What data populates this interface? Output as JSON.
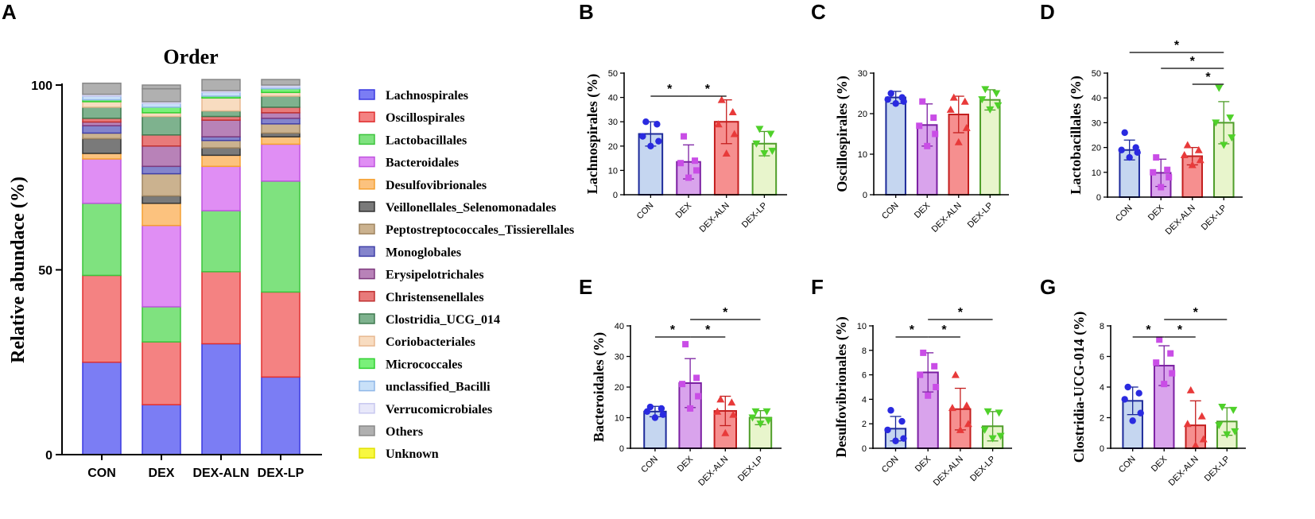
{
  "colors": {
    "CON_fill": "#c5d6f0",
    "CON_edge": "#1d2a9a",
    "CON_dot": "#2a2ae0",
    "DEX_fill": "#d9a3ec",
    "DEX_edge": "#7b1fa2",
    "DEX_dot": "#c94de6",
    "ALN_fill": "#f68f8f",
    "ALN_edge": "#c41e1e",
    "ALN_dot": "#e83a3a",
    "LP_fill": "#e8f5cc",
    "LP_edge": "#4f9e2a",
    "LP_dot": "#4fd12a"
  },
  "chart_data": [
    {
      "panel": "A",
      "type": "bar",
      "stacked": true,
      "title": "Order",
      "ylabel": "Relative abundace (%)",
      "ylim": [
        0,
        100
      ],
      "yticks": [
        "0",
        "50",
        "100"
      ],
      "categories": [
        "CON",
        "DEX",
        "DEX-ALN",
        "DEX-LP"
      ],
      "series": [
        {
          "name": "Lachnospirales",
          "color": "#7b7df4",
          "edge": "#3a3ae0",
          "values": [
            25,
            13.5,
            30,
            21
          ]
        },
        {
          "name": "Oscillospirales",
          "color": "#f48282",
          "edge": "#e03030",
          "values": [
            23.5,
            17,
            19.5,
            23
          ]
        },
        {
          "name": "Lactobacillales",
          "color": "#7fe27f",
          "edge": "#3bc43b",
          "values": [
            19.5,
            9.5,
            16.5,
            30
          ]
        },
        {
          "name": "Bacteroidales",
          "color": "#e08ef4",
          "edge": "#c054e0",
          "values": [
            12,
            22,
            12,
            10
          ]
        },
        {
          "name": "Desulfovibrionales",
          "color": "#fcc27e",
          "edge": "#f5a030",
          "values": [
            1.5,
            6,
            3,
            2
          ]
        },
        {
          "name": "Veillonellales_Selenomonadales",
          "color": "#7a7a7a",
          "edge": "#333333",
          "values": [
            4,
            2,
            2,
            1
          ]
        },
        {
          "name": "Peptostreptococcales_Tissierellales",
          "color": "#cbb28f",
          "edge": "#a08560",
          "values": [
            1.5,
            6,
            2,
            2.5
          ]
        },
        {
          "name": "Monoglobales",
          "color": "#8484cc",
          "edge": "#4040a8",
          "values": [
            2,
            2,
            1,
            1.5
          ]
        },
        {
          "name": "Erysipelotrichales",
          "color": "#b882b8",
          "edge": "#7e3a7e",
          "values": [
            1,
            5.5,
            4.5,
            1.5
          ]
        },
        {
          "name": "Christensenellales",
          "color": "#e87a7a",
          "edge": "#c03030",
          "values": [
            1,
            3,
            1,
            1.5
          ]
        },
        {
          "name": "Clostridia_UCG_014",
          "color": "#7eb28e",
          "edge": "#3f7a4f",
          "values": [
            3,
            5,
            1.5,
            3
          ]
        },
        {
          "name": "Coriobacteriales",
          "color": "#f8dcc0",
          "edge": "#e8b890",
          "values": [
            1.5,
            1,
            3.5,
            1
          ]
        },
        {
          "name": "Micrococcales",
          "color": "#7af07a",
          "edge": "#30d030",
          "values": [
            0.5,
            1.5,
            0.5,
            1
          ]
        },
        {
          "name": "unclassified_Bacilli",
          "color": "#c8e0f8",
          "edge": "#90b8e8",
          "values": [
            1,
            1,
            1,
            0.5
          ]
        },
        {
          "name": "Verrucomicrobiales",
          "color": "#e8e8fa",
          "edge": "#c8c8f0",
          "values": [
            0.5,
            0.5,
            0.5,
            0.5
          ]
        },
        {
          "name": "Others",
          "color": "#b0b0b0",
          "edge": "#888888",
          "values": [
            3,
            3.5,
            3,
            1.5
          ]
        },
        {
          "name": "Unknown",
          "color": "#f8f840",
          "edge": "#e0e000",
          "values": [
            0,
            0,
            0,
            0
          ]
        }
      ]
    },
    {
      "panel": "B",
      "type": "bar",
      "ylabel": "Lachnospirales (%)",
      "ylim": [
        0,
        50
      ],
      "yticks": [
        0,
        10,
        20,
        30,
        40,
        50
      ],
      "categories": [
        "CON",
        "DEX",
        "DEX-ALN",
        "DEX-LP"
      ],
      "means": [
        25,
        13.5,
        30,
        21
      ],
      "sd": [
        5,
        7,
        9,
        5
      ],
      "points": [
        [
          30,
          29,
          24,
          22,
          20
        ],
        [
          24,
          14,
          13,
          10,
          7
        ],
        [
          39,
          34,
          29,
          25,
          17
        ],
        [
          27,
          25,
          21,
          18,
          17
        ]
      ],
      "significance": [
        {
          "from": 0,
          "to": 1,
          "label": "*"
        },
        {
          "from": 1,
          "to": 2,
          "label": "*"
        }
      ]
    },
    {
      "panel": "C",
      "type": "bar",
      "ylabel": "Oscillospirales (%)",
      "ylim": [
        0,
        30
      ],
      "yticks": [
        0,
        10,
        20,
        30
      ],
      "categories": [
        "CON",
        "DEX",
        "DEX-ALN",
        "DEX-LP"
      ],
      "means": [
        24,
        17.2,
        19.8,
        23.4
      ],
      "sd": [
        1.5,
        5.2,
        4.5,
        2.5
      ],
      "points": [
        [
          25,
          24,
          23.5,
          23,
          22.5
        ],
        [
          23,
          19,
          17,
          15,
          12
        ],
        [
          24,
          23,
          21,
          16.5,
          13
        ],
        [
          26,
          25,
          23.5,
          22,
          21
        ]
      ],
      "significance": []
    },
    {
      "panel": "D",
      "type": "bar",
      "ylabel": "Lactobacillales (%)",
      "ylim": [
        0,
        50
      ],
      "yticks": [
        0,
        10,
        20,
        30,
        40,
        50
      ],
      "categories": [
        "CON",
        "DEX",
        "DEX-ALN",
        "DEX-LP"
      ],
      "means": [
        19,
        9.8,
        16.5,
        30
      ],
      "sd": [
        4,
        5.5,
        3.5,
        8.5
      ],
      "points": [
        [
          26,
          20,
          19,
          18,
          16
        ],
        [
          16,
          11,
          10,
          8,
          4
        ],
        [
          21,
          19,
          17,
          15,
          13
        ],
        [
          44,
          32,
          30,
          24,
          21
        ]
      ],
      "significance": [
        {
          "from": 0,
          "to": 3,
          "label": "*"
        },
        {
          "from": 1,
          "to": 3,
          "label": "*"
        },
        {
          "from": 2,
          "to": 3,
          "label": "*"
        }
      ]
    },
    {
      "panel": "E",
      "type": "bar",
      "ylabel": "Bacteroidales (%)",
      "ylim": [
        0,
        40
      ],
      "yticks": [
        0,
        10,
        20,
        30,
        40
      ],
      "categories": [
        "CON",
        "DEX",
        "DEX-ALN",
        "DEX-LP"
      ],
      "means": [
        12,
        21.3,
        12.2,
        10
      ],
      "sd": [
        1.7,
        8,
        4.8,
        2.3
      ],
      "points": [
        [
          13.5,
          13,
          12,
          11,
          10
        ],
        [
          34,
          23,
          21,
          17,
          13
        ],
        [
          16,
          15,
          12,
          11,
          5
        ],
        [
          12,
          12,
          10,
          9,
          8
        ]
      ],
      "significance": [
        {
          "from": 0,
          "to": 1,
          "label": "*"
        },
        {
          "from": 1,
          "to": 2,
          "label": "*"
        },
        {
          "from": 1,
          "to": 3,
          "label": "*"
        }
      ]
    },
    {
      "panel": "F",
      "type": "bar",
      "ylabel": "Desulfovibrionales (%)",
      "ylim": [
        0,
        10
      ],
      "yticks": [
        0,
        2,
        4,
        6,
        8,
        10
      ],
      "categories": [
        "CON",
        "DEX",
        "DEX-ALN",
        "DEX-LP"
      ],
      "means": [
        1.6,
        6.2,
        3.2,
        1.8
      ],
      "sd": [
        1,
        1.6,
        1.7,
        1.2
      ],
      "points": [
        [
          3.1,
          2.2,
          1.5,
          0.8,
          0.6
        ],
        [
          7.8,
          6.7,
          6,
          5,
          4.3
        ],
        [
          6,
          3.5,
          3.3,
          2,
          1.5
        ],
        [
          3,
          2.9,
          1.5,
          1,
          0.8
        ]
      ],
      "significance": [
        {
          "from": 0,
          "to": 1,
          "label": "*"
        },
        {
          "from": 1,
          "to": 2,
          "label": "*"
        },
        {
          "from": 1,
          "to": 3,
          "label": "*"
        }
      ]
    },
    {
      "panel": "G",
      "type": "bar",
      "ylabel": "Clostridia-UCG-014 (%)",
      "ylim": [
        0,
        8
      ],
      "yticks": [
        0,
        2,
        4,
        6,
        8
      ],
      "categories": [
        "CON",
        "DEX",
        "DEX-ALN",
        "DEX-LP"
      ],
      "means": [
        3.1,
        5.4,
        1.5,
        1.75
      ],
      "sd": [
        0.9,
        1.3,
        1.6,
        0.9
      ],
      "points": [
        [
          4,
          3.6,
          3.2,
          2.3,
          1.8
        ],
        [
          7.1,
          6.2,
          5.6,
          4.9,
          4.2
        ],
        [
          3.8,
          2.1,
          1.6,
          0.6,
          0.2
        ],
        [
          2.7,
          2.5,
          1.5,
          1.1,
          0.9
        ]
      ],
      "significance": [
        {
          "from": 0,
          "to": 1,
          "label": "*"
        },
        {
          "from": 1,
          "to": 2,
          "label": "*"
        },
        {
          "from": 1,
          "to": 3,
          "label": "*"
        }
      ]
    }
  ]
}
